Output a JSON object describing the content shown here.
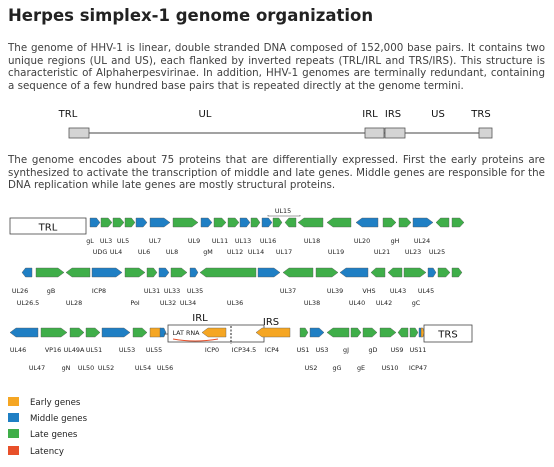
{
  "title": "Herpes simplex-1 genome organization",
  "paragraphs": [
    "The genome of HHV-1 is linear, double stranded DNA composed of 152,000 base pairs. It contains two unique regions (UL and US), each flanked by inverted repeats (TRL/IRL and TRS/IRS). This structure is characteristic of Alphaherpesvirinae. In addition, HHV-1 genomes are terminally redundant, containing a sequence of a few hundred base pairs that is repeated directly at the genome termini.",
    "The genome encodes about 75 proteins that are differentially expressed. First the early proteins are synthesized to activate the transcription of middle and late genes. Middle genes are responsible for the DNA replication while late genes are mostly structural proteins."
  ],
  "genome_map": {
    "labels": [
      "TRL",
      "UL",
      "IRL",
      "IRS",
      "US",
      "TRS"
    ]
  },
  "colors": {
    "early": "#f5a623",
    "middle": "#1f7fc4",
    "late": "#3fae49",
    "latency": "#e8502a",
    "repeat": "#d4d4d4"
  },
  "rows": [
    {
      "repeats": [
        {
          "label": "TRL"
        }
      ],
      "genes": [
        {
          "type": "middle"
        },
        {
          "type": "late"
        },
        {
          "type": "late"
        },
        {
          "type": "late"
        },
        {
          "type": "middle"
        },
        {
          "type": "middle"
        },
        {
          "type": "late"
        },
        {
          "type": "middle"
        },
        {
          "type": "late"
        },
        {
          "type": "late"
        },
        {
          "type": "middle"
        },
        {
          "type": "late"
        },
        {
          "type": "middle"
        },
        {
          "type": "late"
        },
        {
          "type": "late"
        },
        {
          "type": "late"
        },
        {
          "type": "late"
        },
        {
          "type": "middle"
        },
        {
          "type": "late"
        },
        {
          "type": "late"
        },
        {
          "type": "middle"
        },
        {
          "type": "late"
        },
        {
          "type": "late"
        }
      ],
      "labels": [
        "UL15",
        "gL",
        "UL3",
        "UL5",
        "UL7",
        "UL9",
        "UL11",
        "UL13",
        "UL16",
        "UL18",
        "UL20",
        "gH",
        "UL24",
        "UDG",
        "UL4",
        "UL6",
        "UL8",
        "gM",
        "UL12",
        "UL14",
        "UL17",
        "UL19",
        "UL21",
        "UL23",
        "UL25"
      ]
    },
    {
      "repeats": [],
      "genes": [
        {
          "type": "middle"
        },
        {
          "type": "late"
        },
        {
          "type": "late"
        },
        {
          "type": "middle"
        },
        {
          "type": "late"
        },
        {
          "type": "late"
        },
        {
          "type": "middle"
        },
        {
          "type": "late"
        },
        {
          "type": "middle"
        },
        {
          "type": "late"
        },
        {
          "type": "middle"
        },
        {
          "type": "late"
        },
        {
          "type": "late"
        },
        {
          "type": "middle"
        },
        {
          "type": "late"
        },
        {
          "type": "late"
        },
        {
          "type": "late"
        },
        {
          "type": "middle"
        },
        {
          "type": "late"
        },
        {
          "type": "late"
        }
      ],
      "labels": [
        "UL26",
        "gB",
        "ICP8",
        "UL31",
        "UL33",
        "UL35",
        "UL37",
        "UL39",
        "VHS",
        "UL43",
        "UL45",
        "UL26.5",
        "UL28",
        "Pol",
        "UL32",
        "UL34",
        "UL36",
        "UL38",
        "UL40",
        "UL42",
        "gC"
      ]
    },
    {
      "repeats": [
        {
          "label": ""
        },
        {
          "label": "TRS"
        }
      ],
      "genes": [
        {
          "type": "middle"
        },
        {
          "type": "late"
        },
        {
          "type": "late"
        },
        {
          "type": "late"
        },
        {
          "type": "middle"
        },
        {
          "type": "late"
        },
        {
          "type": "early"
        },
        {
          "type": "middle"
        },
        {
          "type": "early"
        },
        {
          "type": "early"
        },
        {
          "type": "late"
        },
        {
          "type": "middle"
        },
        {
          "type": "late"
        },
        {
          "type": "late"
        },
        {
          "type": "late"
        },
        {
          "type": "late"
        },
        {
          "type": "late"
        },
        {
          "type": "late"
        },
        {
          "type": "middle"
        },
        {
          "type": "early"
        }
      ],
      "labels": [
        "UL46",
        "VP16",
        "UL49A",
        "UL51",
        "UL53",
        "UL55",
        "ICP0",
        "ICP34.5",
        "ICP4",
        "US1",
        "US3",
        "gJ",
        "gD",
        "US9",
        "US11",
        "UL47",
        "gN",
        "UL50",
        "UL52",
        "UL54",
        "UL56",
        "US2",
        "gG",
        "gE",
        "US10",
        "ICP47"
      ],
      "annotations": [
        "IRL",
        "IRS",
        "LAT RNA"
      ]
    }
  ],
  "legend": [
    {
      "label": "Early genes",
      "color_key": "early"
    },
    {
      "label": "Middle genes",
      "color_key": "middle"
    },
    {
      "label": "Late genes",
      "color_key": "late"
    },
    {
      "label": "Latency",
      "color_key": "latency"
    }
  ]
}
